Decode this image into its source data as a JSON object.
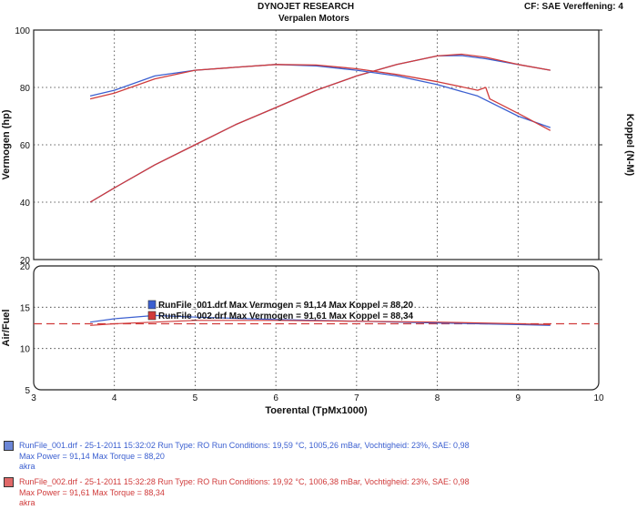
{
  "header": {
    "title": "DYNOJET RESEARCH",
    "subtitle": "Verpalen Motors",
    "correction": "CF: SAE  Vereffening: 4"
  },
  "chart_data": [
    {
      "type": "line",
      "name": "power-torque",
      "xlabel": "Toerental (TpMx1000)",
      "ylabel_left": "Vermogen (hp)",
      "ylabel_right": "Koppel (N-M)",
      "xlim": [
        3,
        10
      ],
      "ylim": [
        20,
        100
      ],
      "x_ticks": [
        3,
        4,
        5,
        6,
        7,
        8,
        9,
        10
      ],
      "y_ticks": [
        20,
        40,
        60,
        80,
        100
      ],
      "grid": true,
      "series": [
        {
          "name": "RunFile_001.drf",
          "quantity": "Vermogen",
          "color": "#3b5fd0",
          "x": [
            3.7,
            4.0,
            4.5,
            5.0,
            5.5,
            6.0,
            6.5,
            7.0,
            7.5,
            8.0,
            8.3,
            8.6,
            9.0,
            9.4
          ],
          "y": [
            40,
            45,
            53,
            60,
            67,
            73,
            79,
            84,
            88,
            91,
            91.1,
            90,
            88,
            86
          ]
        },
        {
          "name": "RunFile_002.drf",
          "quantity": "Vermogen",
          "color": "#d03b3b",
          "x": [
            3.7,
            4.0,
            4.5,
            5.0,
            5.5,
            6.0,
            6.5,
            7.0,
            7.5,
            8.0,
            8.3,
            8.6,
            9.0,
            9.4
          ],
          "y": [
            40,
            45,
            53,
            60,
            67,
            73,
            79,
            84,
            88,
            91,
            91.6,
            90.5,
            88,
            86
          ]
        },
        {
          "name": "RunFile_001.drf",
          "quantity": "Koppel",
          "color": "#3b5fd0",
          "x": [
            3.7,
            4.0,
            4.5,
            5.0,
            5.5,
            6.0,
            6.5,
            7.0,
            7.5,
            8.0,
            8.5,
            9.0,
            9.4
          ],
          "y": [
            77,
            79,
            84,
            86,
            87,
            88,
            87.5,
            86,
            84,
            81,
            77,
            70,
            66
          ]
        },
        {
          "name": "RunFile_002.drf",
          "quantity": "Koppel",
          "color": "#d03b3b",
          "x": [
            3.7,
            4.0,
            4.5,
            5.0,
            5.5,
            6.0,
            6.5,
            7.0,
            7.5,
            8.0,
            8.5,
            8.6,
            8.65,
            9.0,
            9.4
          ],
          "y": [
            76,
            78,
            83,
            86,
            87,
            88,
            87.8,
            86.5,
            84.5,
            82,
            79,
            80,
            76,
            71,
            65
          ]
        }
      ]
    },
    {
      "type": "line",
      "name": "air-fuel",
      "ylabel": "Air/Fuel",
      "xlim": [
        3,
        10
      ],
      "ylim": [
        5,
        20
      ],
      "y_ticks": [
        5,
        10,
        15,
        20
      ],
      "grid": true,
      "reference_line": 13.0,
      "series": [
        {
          "name": "RunFile_001.drf",
          "color": "#3b5fd0",
          "x": [
            3.7,
            4.0,
            4.5,
            5.0,
            6.0,
            7.0,
            8.0,
            9.0,
            9.4
          ],
          "y": [
            13.2,
            13.6,
            14.0,
            13.8,
            13.5,
            13.3,
            13.1,
            12.9,
            12.8
          ]
        },
        {
          "name": "RunFile_002.drf",
          "color": "#d03b3b",
          "x": [
            3.7,
            4.0,
            4.5,
            5.0,
            6.0,
            7.0,
            8.0,
            9.0,
            9.4
          ],
          "y": [
            12.8,
            13.0,
            13.2,
            13.4,
            13.4,
            13.3,
            13.2,
            13.0,
            12.9
          ]
        }
      ],
      "legend": [
        {
          "text": "RunFile_001.drf Max Vermogen = 91,14    Max Koppel = 88,20",
          "color": "#3b5fd0"
        },
        {
          "text": "RunFile_002.drf Max Vermogen = 91,61    Max Koppel = 88,34",
          "color": "#d03b3b"
        }
      ]
    }
  ],
  "runfiles": [
    {
      "line1": "RunFile_001.drf - 25-1-2011 15:32:02  Run Type: RO  Run Conditions: 19,59 °C, 1005,26 mBar,  Vochtigheid: 23%, SAE: 0,98",
      "line2": "Max Power = 91,14  Max Torque = 88,20",
      "line3": "akra",
      "color": "#3b5fd0"
    },
    {
      "line1": "RunFile_002.drf - 25-1-2011 15:32:28  Run Type: RO  Run Conditions: 19,92 °C, 1006,38 mBar,  Vochtigheid: 23%, SAE: 0,98",
      "line2": "Max Power = 91,61  Max Torque = 88,34",
      "line3": "akra",
      "color": "#d03b3b"
    }
  ]
}
